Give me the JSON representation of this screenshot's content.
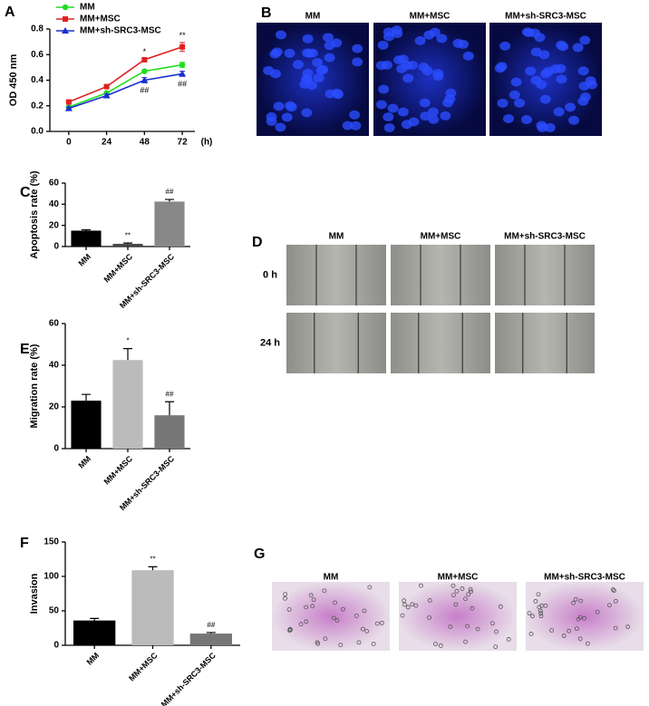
{
  "chart_data": [
    {
      "type": "line",
      "panel": "A",
      "y_label": "OD 450 nm",
      "x_label": "(h)",
      "x": [
        0,
        24,
        48,
        72
      ],
      "xlim": [
        -12,
        80
      ],
      "xticks": [
        0,
        24,
        48,
        72
      ],
      "ylim": [
        0,
        0.8
      ],
      "yticks": [
        {
          "value": 0,
          "label": "0.0"
        },
        0.2,
        0.4,
        0.6,
        0.8
      ],
      "series": [
        {
          "name": "MM",
          "color": "#22dd22",
          "marker": "circle",
          "values": [
            0.19,
            0.3,
            0.47,
            0.52
          ],
          "errors": [
            0.01,
            0.01,
            0.01,
            0.02
          ]
        },
        {
          "name": "MM+MSC",
          "color": "#e02020",
          "marker": "square",
          "values": [
            0.23,
            0.35,
            0.56,
            0.66
          ],
          "errors": [
            0.01,
            0.015,
            0.01,
            0.035
          ],
          "annotations": [
            null,
            null,
            "*",
            "**"
          ]
        },
        {
          "name": "MM+sh-SRC3-MSC",
          "color": "#1a2fd0",
          "marker": "triangle",
          "values": [
            0.18,
            0.28,
            0.4,
            0.45
          ],
          "errors": [
            0.01,
            0.01,
            0.02,
            0.02
          ],
          "annotations": [
            null,
            null,
            "##",
            "##"
          ]
        }
      ]
    },
    {
      "type": "bar",
      "panel": "C",
      "y_label": "Apoptosis rate (%)",
      "categories": [
        "MM",
        "MM+MSC",
        "MM+sh-SRC3-MSC"
      ],
      "values": [
        15,
        2.5,
        42.5
      ],
      "errors": [
        0.8,
        0.8,
        2
      ],
      "annotations": [
        null,
        "**",
        "##"
      ],
      "colors": [
        "#000000",
        "#444444",
        "#888888"
      ],
      "ylim": [
        0,
        60
      ],
      "yticks": [
        0,
        20,
        40,
        60
      ]
    },
    {
      "type": "bar",
      "panel": "E",
      "y_label": "Migration rate (%)",
      "categories": [
        "MM",
        "MM+MSC",
        "MM+sh-SRC3-MSC"
      ],
      "values": [
        23,
        42.5,
        16
      ],
      "errors": [
        3,
        5.5,
        6.5
      ],
      "annotations": [
        null,
        "*",
        "##"
      ],
      "colors": [
        "#000000",
        "#bbbbbb",
        "#777777"
      ],
      "ylim": [
        0,
        60
      ],
      "yticks": [
        0,
        20,
        40,
        60
      ]
    },
    {
      "type": "bar",
      "panel": "F",
      "y_label": "Invasion",
      "categories": [
        "MM",
        "MM+MSC",
        "MM+sh-SRC3-MSC"
      ],
      "values": [
        36,
        109,
        17
      ],
      "errors": [
        3,
        5,
        1.5
      ],
      "annotations": [
        null,
        "**",
        "##"
      ],
      "colors": [
        "#000000",
        "#bbbbbb",
        "#777777"
      ],
      "ylim": [
        0,
        150
      ],
      "yticks": [
        0,
        50,
        100,
        150
      ]
    }
  ],
  "image_panels": [
    {
      "panel": "B",
      "labels": [
        "MM",
        "MM+MSC",
        "MM+sh-SRC3-MSC"
      ]
    },
    {
      "panel": "D",
      "labels": [
        "MM",
        "MM+MSC",
        "MM+sh-SRC3-MSC"
      ],
      "row_labels": [
        "0 h",
        "24 h"
      ]
    },
    {
      "panel": "G",
      "labels": [
        "MM",
        "MM+MSC",
        "MM+sh-SRC3-MSC"
      ]
    }
  ]
}
